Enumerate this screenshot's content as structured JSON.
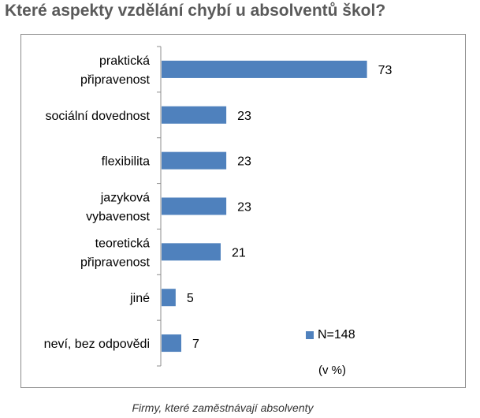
{
  "chart_data": {
    "type": "bar",
    "orientation": "horizontal",
    "title": "Které aspekty vzdělání chybí u absolventů škol?",
    "categories": [
      [
        "praktická",
        "připravenost"
      ],
      [
        "sociální dovednost"
      ],
      [
        "flexibilita"
      ],
      [
        "jazyková",
        "vybavenost"
      ],
      [
        "teoretická",
        "připravenost"
      ],
      [
        "jiné"
      ],
      [
        "neví, bez odpovědi"
      ]
    ],
    "series": [
      {
        "name": "N=148",
        "values": [
          73,
          23,
          23,
          23,
          21,
          5,
          7
        ]
      }
    ],
    "unit_note": "(v %)",
    "xlim": [
      0,
      100
    ],
    "grid": false,
    "legend_position": "bottom-right",
    "bar_color": "#4f81bd"
  },
  "caption": "Firmy, které zaměstnávají absolventy"
}
